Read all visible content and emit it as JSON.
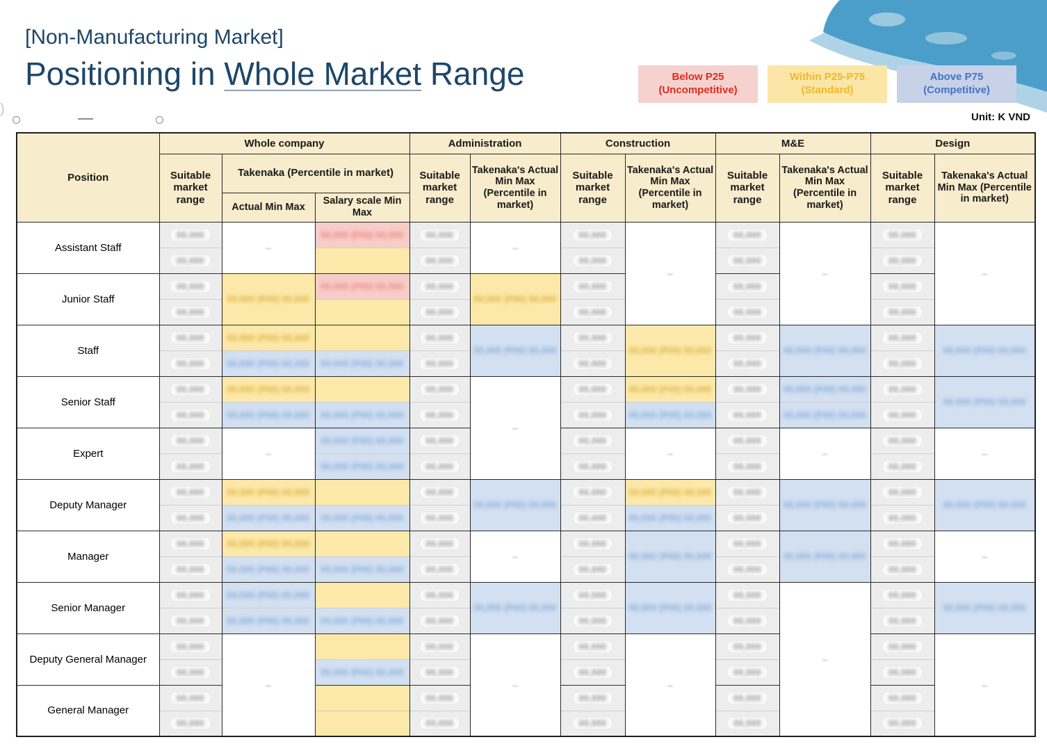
{
  "title": {
    "line1": "[Non-Manufacturing Market]",
    "line2_prefix": "Positioning in ",
    "line2_underlined": "Whole Market",
    "line2_suffix": " Range"
  },
  "legend": [
    {
      "line1": "Below P25",
      "line2": "(Uncompetitive)",
      "bg": "#F5D2CE",
      "color": "#E02B20"
    },
    {
      "line1": "Within P25-P75",
      "line2": "(Standard)",
      "bg": "#FBE6A7",
      "color": "#EFB82C"
    },
    {
      "line1": "Above P75",
      "line2": "(Competitive)",
      "bg": "#C7D2E8",
      "color": "#4472C4"
    }
  ],
  "unit_label": "Unit: K VND",
  "colors": {
    "title_blue": "#1E4669",
    "header_cream": "#F7ECCC",
    "cell_below_p25_bg": "#F7CDC9",
    "cell_within_bg": "#FCE9A9",
    "cell_above_bg": "#D2E0F1",
    "suitable_bg": "#EDEDED",
    "map_dark_blue": "#4B9EC9",
    "map_light_blue": "#AFD3E6"
  },
  "table": {
    "header": {
      "position": "Position",
      "groups": [
        {
          "label": "Whole company"
        },
        {
          "label": "Administration"
        },
        {
          "label": "Construction"
        },
        {
          "label": "M&E"
        },
        {
          "label": "Design"
        }
      ],
      "suitable": "Suitable market range",
      "takenaka_group": "Takenaka (Percentile in market)",
      "actual": "Actual Min Max",
      "salary_scale": "Salary scale Min Max",
      "dept_takenaka": "Takenaka's Actual Min Max (Percentile in market)"
    },
    "positions": [
      "Assistant Staff",
      "Junior Staff",
      "Staff",
      "Senior Staff",
      "Expert",
      "Deputy Manager",
      "Manager",
      "Senior Manager",
      "Deputy General Manager",
      "General Manager"
    ],
    "values_redacted": true,
    "masked": {
      "narrow": "00,000",
      "wide": "00,000 (P00) 00,000"
    },
    "column_order": [
      "whole_suitable",
      "whole_actual",
      "whole_salary",
      "admin_suitable",
      "admin_takenaka",
      "constr_suitable",
      "constr_takenaka",
      "me_suitable",
      "me_takenaka",
      "design_suitable",
      "design_takenaka"
    ],
    "grid": {
      "whole_actual": [
        [
          2,
          "white",
          "dash"
        ],
        [
          2,
          "yellow",
          "text"
        ],
        [
          1,
          "yellow",
          "text"
        ],
        [
          1,
          "blue",
          "text"
        ],
        [
          1,
          "yellow",
          "text"
        ],
        [
          1,
          "blue",
          "text"
        ],
        [
          2,
          "white",
          "dash"
        ],
        [
          1,
          "yellow",
          "text"
        ],
        [
          1,
          "blue",
          "text"
        ],
        [
          1,
          "yellow",
          "text"
        ],
        [
          1,
          "blue",
          "text"
        ],
        [
          1,
          "blue",
          "text"
        ],
        [
          1,
          "blue",
          "text"
        ],
        [
          4,
          "white",
          "dash"
        ]
      ],
      "whole_salary": [
        [
          1,
          "red",
          "text"
        ],
        [
          1,
          "yellow",
          "none"
        ],
        [
          1,
          "red",
          "text"
        ],
        [
          1,
          "yellow",
          "none"
        ],
        [
          1,
          "yellow",
          "none"
        ],
        [
          1,
          "blue",
          "text"
        ],
        [
          1,
          "yellow",
          "none"
        ],
        [
          1,
          "blue",
          "text"
        ],
        [
          1,
          "blue",
          "text"
        ],
        [
          1,
          "blue",
          "text"
        ],
        [
          1,
          "yellow",
          "none"
        ],
        [
          1,
          "blue",
          "text"
        ],
        [
          1,
          "yellow",
          "none"
        ],
        [
          1,
          "blue",
          "text"
        ],
        [
          1,
          "yellow",
          "none"
        ],
        [
          1,
          "blue",
          "text"
        ],
        [
          1,
          "yellow",
          "none"
        ],
        [
          1,
          "blue",
          "text"
        ],
        [
          1,
          "yellow",
          "none"
        ],
        [
          1,
          "yellow",
          "none"
        ]
      ],
      "admin_takenaka": [
        [
          2,
          "white",
          "dash"
        ],
        [
          2,
          "yellow",
          "text"
        ],
        [
          2,
          "blue",
          "text"
        ],
        [
          4,
          "white",
          "dash"
        ],
        [
          2,
          "blue",
          "text"
        ],
        [
          2,
          "white",
          "dash"
        ],
        [
          2,
          "blue",
          "text"
        ],
        [
          4,
          "white",
          "dash"
        ]
      ],
      "constr_takenaka": [
        [
          4,
          "white",
          "dash"
        ],
        [
          2,
          "yellow",
          "text"
        ],
        [
          1,
          "yellow",
          "text"
        ],
        [
          1,
          "blue",
          "text"
        ],
        [
          2,
          "white",
          "dash"
        ],
        [
          1,
          "yellow",
          "text"
        ],
        [
          1,
          "blue",
          "text"
        ],
        [
          2,
          "blue",
          "text"
        ],
        [
          2,
          "blue",
          "text"
        ],
        [
          4,
          "white",
          "dash"
        ]
      ],
      "me_takenaka": [
        [
          4,
          "white",
          "dash"
        ],
        [
          2,
          "blue",
          "text"
        ],
        [
          1,
          "blue",
          "text"
        ],
        [
          1,
          "blue",
          "text"
        ],
        [
          2,
          "white",
          "dash"
        ],
        [
          2,
          "blue",
          "text"
        ],
        [
          2,
          "blue",
          "text"
        ],
        [
          6,
          "white",
          "dash"
        ]
      ],
      "design_takenaka": [
        [
          4,
          "white",
          "dash"
        ],
        [
          2,
          "blue",
          "text"
        ],
        [
          2,
          "blue",
          "text"
        ],
        [
          2,
          "white",
          "dash"
        ],
        [
          2,
          "blue",
          "text"
        ],
        [
          2,
          "white",
          "dash"
        ],
        [
          2,
          "blue",
          "text"
        ],
        [
          4,
          "white",
          "dash"
        ]
      ]
    }
  }
}
